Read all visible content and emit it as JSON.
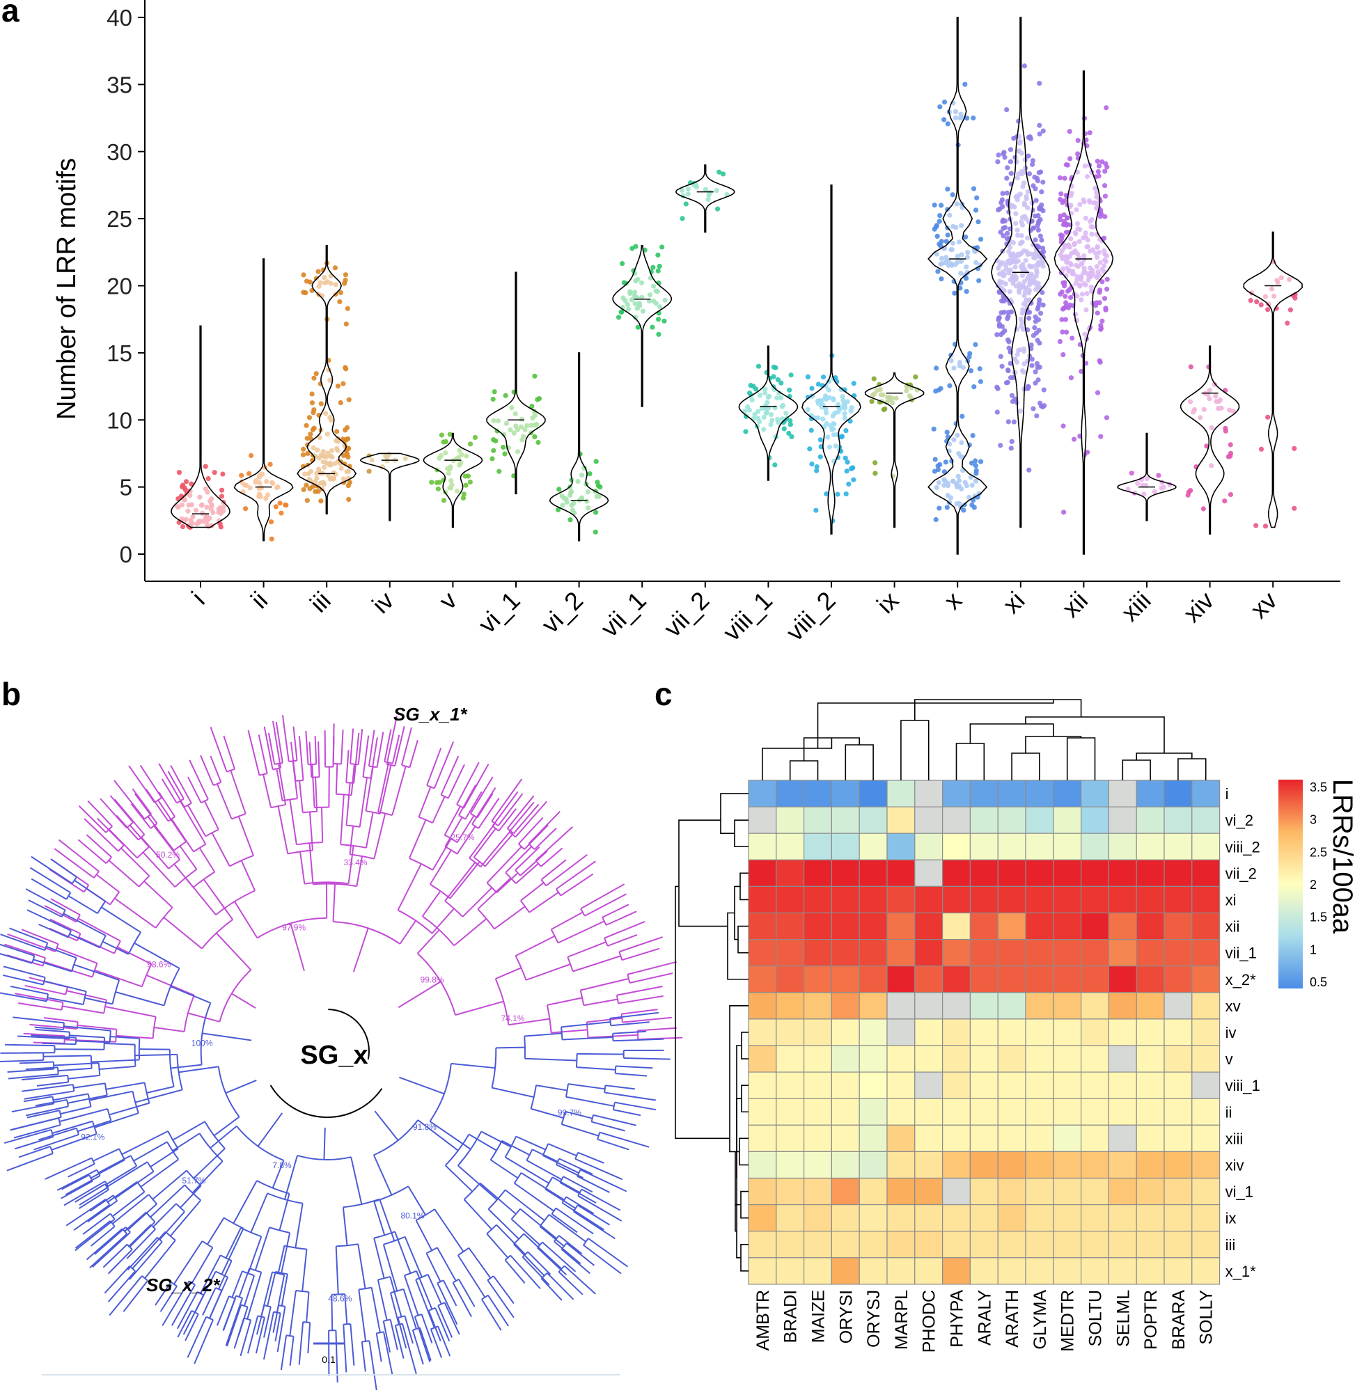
{
  "panels": {
    "a": "a",
    "b": "b",
    "c": "c"
  },
  "chart_data": [
    {
      "type": "violin-scatter",
      "panel": "a",
      "ylabel": "Number of LRR motifs",
      "xlabel": "",
      "ylim": [
        0,
        40
      ],
      "yticks": [
        "0",
        "5",
        "10",
        "15",
        "20",
        "25",
        "30",
        "35",
        "40"
      ],
      "grid": false,
      "groups": [
        {
          "name": "i",
          "color": "#EE5568",
          "median": 3,
          "min": 2,
          "max": 17,
          "clusters": [
            [
              3,
              50
            ],
            [
              4,
              20
            ],
            [
              5,
              8
            ]
          ],
          "spread": 1.2
        },
        {
          "name": "ii",
          "color": "#F07F2A",
          "median": 5,
          "min": 1,
          "max": 22,
          "clusters": [
            [
              5,
              30
            ],
            [
              3,
              6
            ]
          ],
          "spread": 1.0
        },
        {
          "name": "iii",
          "color": "#D98525",
          "median": 6,
          "min": 3,
          "max": 23,
          "clusters": [
            [
              6,
              60
            ],
            [
              8,
              40
            ],
            [
              10,
              15
            ],
            [
              20,
              30
            ],
            [
              13,
              12
            ]
          ],
          "spread": 1.0
        },
        {
          "name": "iv",
          "color": "#C79A3A",
          "median": 7,
          "min": 2.5,
          "max": 7.5,
          "clusters": [
            [
              7,
              10
            ]
          ],
          "spread": 0.4
        },
        {
          "name": "v",
          "color": "#6AC33A",
          "median": 7,
          "min": 2,
          "max": 9,
          "clusters": [
            [
              7,
              30
            ],
            [
              5,
              10
            ]
          ],
          "spread": 1.0
        },
        {
          "name": "vi_1",
          "color": "#55C23F",
          "median": 10,
          "min": 4.5,
          "max": 21,
          "clusters": [
            [
              10,
              35
            ],
            [
              8,
              10
            ]
          ],
          "spread": 1.2
        },
        {
          "name": "vi_2",
          "color": "#3FC24E",
          "median": 4,
          "min": 1,
          "max": 15,
          "clusters": [
            [
              4,
              30
            ],
            [
              6,
              8
            ]
          ],
          "spread": 1.0
        },
        {
          "name": "vii_1",
          "color": "#30C566",
          "median": 19,
          "min": 11,
          "max": 23,
          "clusters": [
            [
              19,
              45
            ],
            [
              21,
              10
            ]
          ],
          "spread": 1.4
        },
        {
          "name": "vii_2",
          "color": "#2CC691",
          "median": 27,
          "min": 24,
          "max": 29,
          "clusters": [
            [
              27,
              20
            ]
          ],
          "spread": 0.8
        },
        {
          "name": "viii_1",
          "color": "#27C3AE",
          "median": 11,
          "min": 5.5,
          "max": 15.5,
          "clusters": [
            [
              11,
              55
            ],
            [
              9,
              15
            ]
          ],
          "spread": 1.3
        },
        {
          "name": "viii_2",
          "color": "#2CB2E2",
          "median": 11,
          "min": 1.5,
          "max": 27.5,
          "clusters": [
            [
              11,
              70
            ],
            [
              8,
              20
            ],
            [
              4,
              8
            ]
          ],
          "spread": 1.5
        },
        {
          "name": "ix",
          "color": "#7FA82E",
          "median": 12,
          "min": 2,
          "max": 13.5,
          "clusters": [
            [
              12,
              30
            ],
            [
              6,
              3
            ]
          ],
          "spread": 0.8
        },
        {
          "name": "x",
          "color": "#4F8BE3",
          "median": 22,
          "min": 0,
          "max": 40,
          "clusters": [
            [
              22,
              50
            ],
            [
              25,
              25
            ],
            [
              5,
              50
            ],
            [
              8,
              20
            ],
            [
              14,
              20
            ],
            [
              33,
              15
            ]
          ],
          "spread": 1.2
        },
        {
          "name": "xi",
          "color": "#8F78E6",
          "median": 21,
          "min": 2,
          "max": 40,
          "clusters": [
            [
              21,
              200
            ],
            [
              26,
              80
            ],
            [
              15,
              60
            ],
            [
              30,
              30
            ],
            [
              11,
              20
            ]
          ],
          "spread": 2.5
        },
        {
          "name": "xii",
          "color": "#B266E5",
          "median": 22,
          "min": 0,
          "max": 36,
          "clusters": [
            [
              22,
              130
            ],
            [
              26,
              60
            ],
            [
              18,
              40
            ],
            [
              28,
              30
            ],
            [
              9,
              10
            ]
          ],
          "spread": 2.2
        },
        {
          "name": "xiii",
          "color": "#D561D9",
          "median": 5,
          "min": 2.5,
          "max": 9,
          "clusters": [
            [
              5,
              15
            ]
          ],
          "spread": 0.5
        },
        {
          "name": "xiv",
          "color": "#E058AC",
          "median": 12,
          "min": 1.5,
          "max": 15.5,
          "clusters": [
            [
              11,
              25
            ],
            [
              6,
              12
            ]
          ],
          "spread": 1.5
        },
        {
          "name": "xv",
          "color": "#EA5782",
          "median": 20,
          "min": 2,
          "max": 24,
          "clusters": [
            [
              20,
              20
            ],
            [
              3,
              3
            ],
            [
              9,
              3
            ]
          ],
          "spread": 1.2
        }
      ]
    },
    {
      "type": "phylogenetic-tree",
      "panel": "b",
      "center_label": "SG_x",
      "clade_labels": [
        "SG_x_1*",
        "SG_x_2*"
      ],
      "scale_label": "0.1",
      "clade_colors": {
        "SG_x_1*": "#C34BD6",
        "SG_x_2*": "#4B5BD6"
      },
      "bootstrap_labels": [
        "100%",
        "98.6%",
        "50.2%",
        "97.9%",
        "33.4%",
        "25.7%",
        "99.8%",
        "74.1%",
        "99.7%",
        "91.8%",
        "80.1%",
        "48.6%",
        "7.8%",
        "51.7%",
        "92.1%"
      ]
    },
    {
      "type": "heatmap",
      "panel": "c",
      "columns": [
        "AMBTR",
        "BRADI",
        "MAIZE",
        "ORYSI",
        "ORYSJ",
        "MARPL",
        "PHODC",
        "PHYPA",
        "ARALY",
        "ARATH",
        "GLYMA",
        "MEDTR",
        "SOLTU",
        "SELML",
        "POPTR",
        "BRARA",
        "SOLLY"
      ],
      "rows": [
        "i",
        "vi_2",
        "viii_2",
        "vii_2",
        "xi",
        "xii",
        "vii_1",
        "x_2*",
        "xv",
        "iv",
        "v",
        "viii_1",
        "ii",
        "xiii",
        "xiv",
        "vi_1",
        "ix",
        "iii",
        "x_1*"
      ],
      "values": [
        [
          0.8,
          0.6,
          0.6,
          0.7,
          0.5,
          1.6,
          null,
          0.8,
          0.7,
          0.7,
          0.7,
          0.6,
          1.0,
          null,
          0.7,
          0.5,
          0.8
        ],
        [
          null,
          1.8,
          1.6,
          1.6,
          1.5,
          2.2,
          null,
          null,
          1.6,
          1.6,
          1.4,
          1.8,
          1.2,
          null,
          1.6,
          1.5,
          1.5
        ],
        [
          1.9,
          1.9,
          1.4,
          1.4,
          1.9,
          1.0,
          1.8,
          2.0,
          1.9,
          1.9,
          1.9,
          1.9,
          1.6,
          1.8,
          1.9,
          1.9,
          1.9
        ],
        [
          3.5,
          3.4,
          3.5,
          3.5,
          3.5,
          3.5,
          null,
          3.5,
          3.5,
          3.5,
          3.5,
          3.5,
          3.5,
          3.5,
          3.5,
          3.5,
          3.5
        ],
        [
          3.4,
          3.4,
          3.4,
          3.4,
          3.4,
          3.3,
          3.4,
          3.4,
          3.4,
          3.4,
          3.4,
          3.4,
          3.4,
          3.4,
          3.4,
          3.4,
          3.4
        ],
        [
          3.3,
          3.3,
          3.4,
          3.4,
          3.4,
          3.1,
          3.4,
          2.2,
          3.2,
          2.9,
          3.4,
          3.4,
          3.5,
          3.1,
          3.4,
          3.2,
          3.3
        ],
        [
          3.2,
          3.2,
          3.3,
          3.3,
          3.3,
          3.1,
          3.4,
          3.1,
          3.2,
          3.2,
          3.2,
          3.2,
          3.2,
          3.0,
          3.2,
          3.2,
          3.2
        ],
        [
          3.1,
          3.2,
          3.1,
          3.1,
          3.2,
          3.5,
          3.2,
          3.4,
          3.2,
          3.2,
          3.2,
          3.2,
          3.2,
          3.5,
          3.3,
          3.2,
          3.1
        ],
        [
          2.8,
          2.7,
          2.6,
          2.9,
          2.6,
          null,
          null,
          null,
          1.6,
          1.6,
          2.6,
          2.6,
          2.3,
          2.8,
          2.7,
          null,
          2.3
        ],
        [
          2.2,
          2.2,
          2.2,
          2.1,
          1.9,
          null,
          2.1,
          2.2,
          2.1,
          2.1,
          2.1,
          2.1,
          2.2,
          2.1,
          2.1,
          2.1,
          2.2
        ],
        [
          2.5,
          2.1,
          2.1,
          1.8,
          1.9,
          2.1,
          2.1,
          2.2,
          2.1,
          2.2,
          2.1,
          2.1,
          2.1,
          null,
          2.1,
          2.2,
          2.2
        ],
        [
          2.1,
          2.1,
          2.1,
          2.1,
          2.0,
          2.1,
          null,
          2.2,
          2.1,
          2.1,
          2.1,
          2.1,
          2.1,
          2.1,
          2.1,
          2.1,
          null
        ],
        [
          2.1,
          2.1,
          2.1,
          2.1,
          1.8,
          2.1,
          2.1,
          2.1,
          2.1,
          2.1,
          2.1,
          2.1,
          2.1,
          2.1,
          2.1,
          2.1,
          2.1
        ],
        [
          2.1,
          2.1,
          2.1,
          2.1,
          1.8,
          2.5,
          2.1,
          2.1,
          2.1,
          2.1,
          2.1,
          1.9,
          2.1,
          null,
          2.1,
          2.1,
          2.1
        ],
        [
          1.8,
          1.9,
          1.9,
          1.8,
          1.7,
          2.3,
          2.3,
          2.6,
          2.8,
          2.8,
          2.7,
          2.6,
          2.6,
          2.5,
          2.7,
          2.7,
          2.6
        ],
        [
          2.5,
          2.4,
          2.4,
          2.9,
          2.3,
          2.8,
          2.8,
          null,
          2.3,
          2.4,
          2.3,
          2.3,
          2.3,
          2.6,
          2.5,
          2.4,
          2.3
        ],
        [
          2.7,
          2.3,
          2.4,
          2.3,
          2.2,
          2.3,
          2.3,
          2.3,
          2.3,
          2.5,
          2.3,
          2.3,
          2.3,
          2.3,
          2.3,
          2.3,
          2.3
        ],
        [
          2.3,
          2.3,
          2.3,
          2.3,
          2.3,
          2.4,
          2.4,
          2.3,
          2.3,
          2.3,
          2.3,
          2.3,
          2.3,
          2.3,
          2.3,
          2.3,
          2.3
        ],
        [
          2.2,
          2.2,
          2.2,
          2.8,
          2.2,
          2.2,
          2.2,
          2.8,
          2.2,
          2.2,
          2.2,
          2.2,
          2.2,
          2.2,
          2.2,
          2.2,
          2.2
        ]
      ],
      "legend_title": "LRRs/100aa",
      "legend_ticks": [
        "0.5",
        "1",
        "1.5",
        "2",
        "2.5",
        "3",
        "3.5"
      ],
      "colorscale": [
        "#4A8CE6",
        "#A9DDEA",
        "#FFFFBF",
        "#FDB863",
        "#E8222A"
      ],
      "missing_color": "#D6D9D6"
    }
  ]
}
